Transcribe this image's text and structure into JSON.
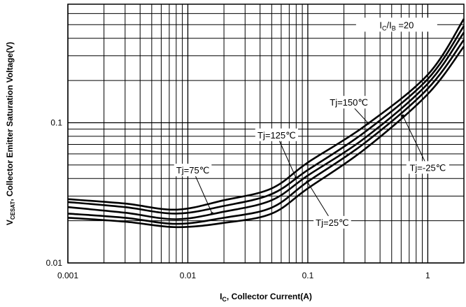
{
  "chart_data": {
    "type": "line",
    "xscale": "log",
    "yscale": "log",
    "xlim": [
      0.001,
      2
    ],
    "ylim": [
      0.01,
      0.7
    ],
    "grid": true,
    "xlabel": {
      "main": "I",
      "sub": "C",
      "rest": ", Collector Current(A)"
    },
    "ylabel": {
      "main": "V",
      "sub": "CESAT",
      "rest": ", Collector Emitter Saturation Voltage(V)"
    },
    "x_ticks": [
      {
        "value": 0.001,
        "label": "0.001"
      },
      {
        "value": 0.01,
        "label": "0.01"
      },
      {
        "value": 0.1,
        "label": "0.1"
      },
      {
        "value": 1,
        "label": "1"
      }
    ],
    "y_ticks": [
      {
        "value": 0.01,
        "label": "0.01"
      },
      {
        "value": 0.1,
        "label": "0.1"
      }
    ],
    "condition": {
      "main": "I",
      "sub1": "C",
      "mid": "/I",
      "sub2": "B",
      "rest": " =20"
    },
    "series": [
      {
        "name": "Tj=150℃",
        "points": [
          [
            0.001,
            0.0285
          ],
          [
            0.003,
            0.0265
          ],
          [
            0.008,
            0.024
          ],
          [
            0.02,
            0.028
          ],
          [
            0.05,
            0.034
          ],
          [
            0.1,
            0.052
          ],
          [
            0.3,
            0.095
          ],
          [
            1,
            0.22
          ],
          [
            2,
            0.55
          ]
        ]
      },
      {
        "name": "Tj=125℃",
        "points": [
          [
            0.001,
            0.0272
          ],
          [
            0.003,
            0.025
          ],
          [
            0.008,
            0.0225
          ],
          [
            0.02,
            0.0255
          ],
          [
            0.05,
            0.031
          ],
          [
            0.1,
            0.046
          ],
          [
            0.3,
            0.086
          ],
          [
            1,
            0.205
          ],
          [
            2,
            0.49
          ]
        ]
      },
      {
        "name": "Tj=75℃",
        "points": [
          [
            0.001,
            0.025
          ],
          [
            0.003,
            0.0228
          ],
          [
            0.008,
            0.0205
          ],
          [
            0.02,
            0.0232
          ],
          [
            0.05,
            0.028
          ],
          [
            0.1,
            0.042
          ],
          [
            0.3,
            0.078
          ],
          [
            1,
            0.19
          ],
          [
            2,
            0.44
          ]
        ]
      },
      {
        "name": "Tj=25℃",
        "points": [
          [
            0.001,
            0.0225
          ],
          [
            0.003,
            0.021
          ],
          [
            0.008,
            0.019
          ],
          [
            0.02,
            0.021
          ],
          [
            0.05,
            0.0248
          ],
          [
            0.1,
            0.038
          ],
          [
            0.3,
            0.072
          ],
          [
            1,
            0.175
          ],
          [
            2,
            0.39
          ]
        ]
      },
      {
        "name": "Tj=-25℃",
        "points": [
          [
            0.001,
            0.021
          ],
          [
            0.003,
            0.0197
          ],
          [
            0.008,
            0.018
          ],
          [
            0.02,
            0.0193
          ],
          [
            0.05,
            0.0225
          ],
          [
            0.1,
            0.034
          ],
          [
            0.3,
            0.065
          ],
          [
            1,
            0.16
          ],
          [
            2,
            0.35
          ]
        ]
      }
    ],
    "annotations": [
      {
        "text": "Tj=150℃",
        "series": 0,
        "x": 0.22,
        "y": 0.14
      },
      {
        "text": "Tj=125℃",
        "series": 1,
        "x": 0.055,
        "y": 0.082
      },
      {
        "text": "Tj=75℃",
        "series": 2,
        "x": 0.011,
        "y": 0.046
      },
      {
        "text": "Tj=25℃",
        "series": 3,
        "x": 0.16,
        "y": 0.0195
      },
      {
        "text": "Tj=-25℃",
        "series": 4,
        "x": 1.0,
        "y": 0.048
      }
    ]
  }
}
